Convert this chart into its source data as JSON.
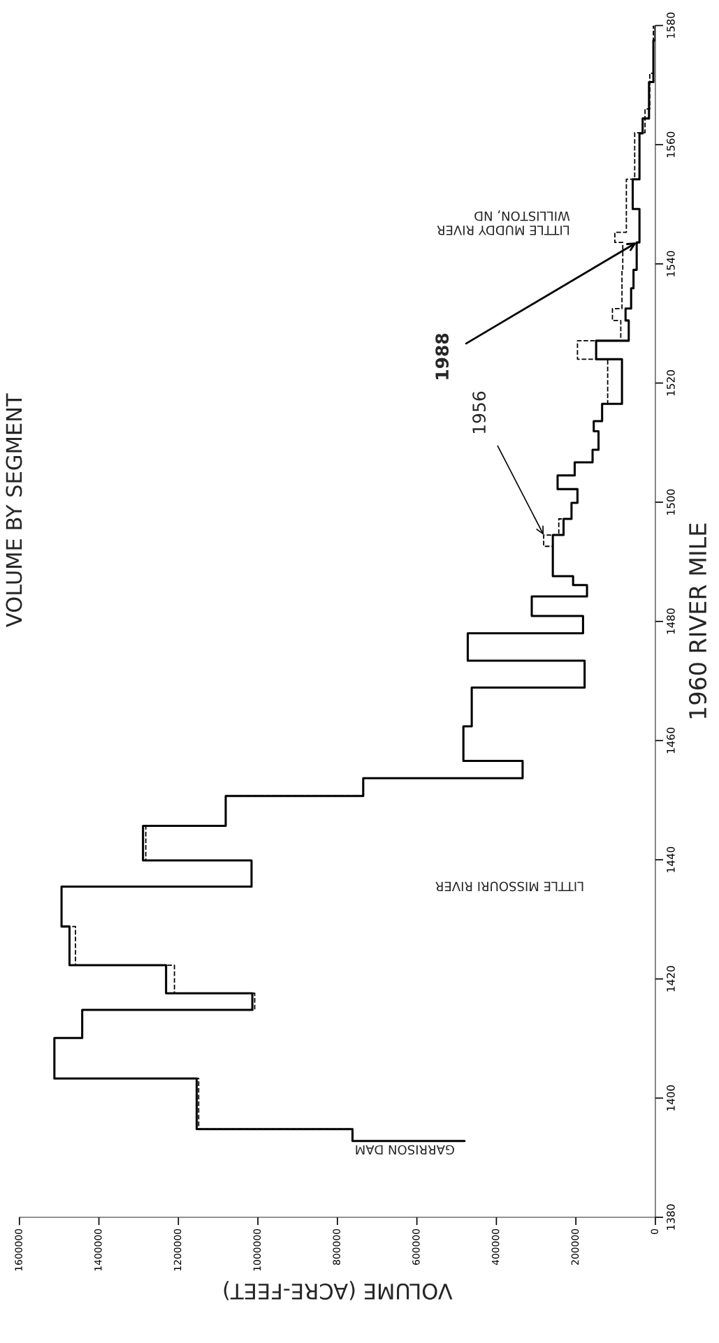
{
  "chart_data": {
    "type": "step",
    "title": "VOLUME BY SEGMENT",
    "xlabel": "VOLUME (ACRE-FEET)",
    "ylabel": "1960 RIVER MILE",
    "xlim": [
      1600000,
      0
    ],
    "xticks": [
      0,
      200000,
      400000,
      600000,
      800000,
      1000000,
      1200000,
      1400000,
      1600000
    ],
    "ylim": [
      1380,
      1580
    ],
    "yticks": [
      1380,
      1400,
      1420,
      1440,
      1460,
      1480,
      1500,
      1520,
      1540,
      1560,
      1580
    ],
    "grid": false,
    "legend": false,
    "series": [
      {
        "color": "#000000",
        "line_style": "dashed",
        "values": [
          1392.8,
          1392.8,
          1394.8,
          1403.3,
          1410.1,
          1414.8,
          1417.6,
          1422.3,
          1428.8,
          1435.5,
          1439.9,
          1445.7,
          1450.7,
          1453.7,
          1456.6,
          1462.4,
          1468.9,
          1473.4,
          1478.0,
          1480.9,
          1484.2,
          1486.1,
          1487.6,
          1492.6,
          1494.5,
          1497.2,
          1499.9,
          1502.2,
          1504.5,
          1506.7,
          1508.8,
          1511.9,
          1513.6,
          1516.5,
          1524.0,
          1527.1,
          1530.5,
          1532.5,
          1539.0,
          1543.6,
          1545.3,
          1554.2,
          1562.0,
          1566.0,
          1572.0,
          1580
        ],
        "x": [
          480000,
          762000,
          1149000,
          1512000,
          1442000,
          1008000,
          1210000,
          1459000,
          1494000,
          1016000,
          1282000,
          1081000,
          735000,
          334000,
          483000,
          462000,
          178000,
          472000,
          182000,
          311000,
          172000,
          207000,
          258000,
          281000,
          243000,
          211000,
          196000,
          246000,
          203000,
          158000,
          143000,
          155000,
          134000,
          120000,
          196000,
          87000,
          108000,
          84000,
          82000,
          102000,
          73000,
          52000,
          26000,
          14000,
          5000,
          5000
        ]
      },
      {
        "color": "#000000",
        "line_style": "solid",
        "values": [
          1392.8,
          1392.8,
          1394.8,
          1403.3,
          1410.1,
          1414.8,
          1417.6,
          1422.3,
          1428.8,
          1435.5,
          1439.9,
          1445.7,
          1450.7,
          1453.7,
          1456.6,
          1462.4,
          1468.9,
          1473.4,
          1478.0,
          1480.9,
          1484.2,
          1486.1,
          1487.6,
          1494.5,
          1497.2,
          1499.9,
          1502.2,
          1504.5,
          1506.7,
          1508.8,
          1511.9,
          1513.6,
          1516.5,
          1524.0,
          1527.1,
          1530.5,
          1532.5,
          1535.9,
          1539.0,
          1543.6,
          1549.2,
          1554.2,
          1561.9,
          1564.4,
          1570.5,
          1577.5,
          1580
        ],
        "x": [
          480000,
          762000,
          1154000,
          1512000,
          1442000,
          1014000,
          1231000,
          1474000,
          1494000,
          1016000,
          1289000,
          1081000,
          735000,
          334000,
          483000,
          462000,
          178000,
          472000,
          182000,
          311000,
          172000,
          207000,
          258000,
          231000,
          211000,
          196000,
          246000,
          203000,
          158000,
          143000,
          155000,
          134000,
          84000,
          149000,
          67000,
          75000,
          61000,
          55000,
          47000,
          40000,
          57000,
          40000,
          32000,
          16000,
          5000,
          0,
          0
        ]
      }
    ],
    "annotations": [
      "GARRISON DAM",
      "LITTLE MISSOURI RIVER",
      "LITTLE MUDDY RIVER\nWILLISTON, ND",
      {
        "text": "1956",
        "x": 281000,
        "y": 1494.5
      },
      {
        "text": "1988",
        "x": 47000,
        "y": 1543.6
      }
    ]
  }
}
